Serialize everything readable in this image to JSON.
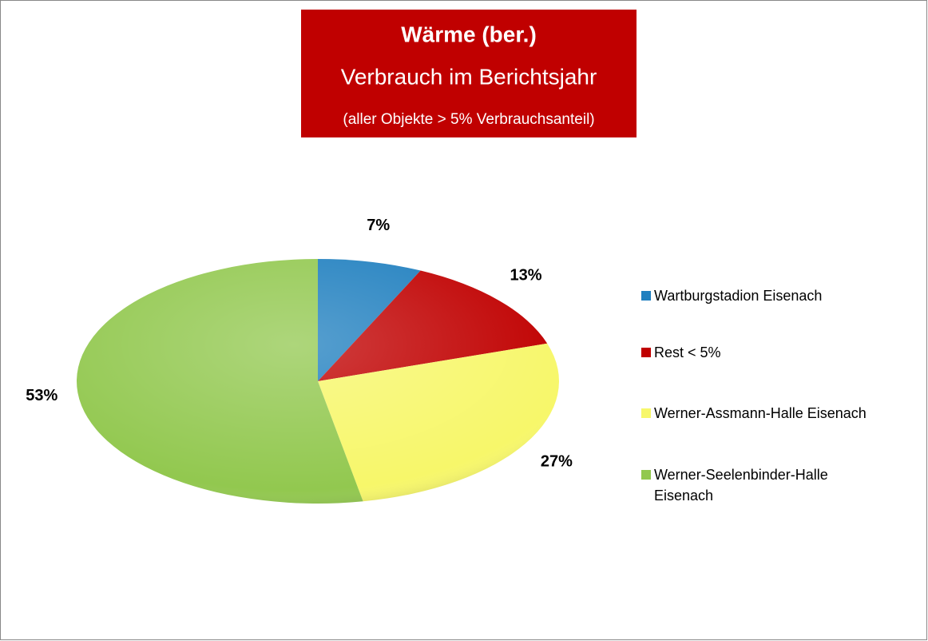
{
  "chart_data": {
    "type": "pie",
    "title": "Wärme (ber.)",
    "subtitle": "Verbrauch im Berichtsjahr",
    "note": "(aller Objekte > 5% Verbrauchsanteil)",
    "categories": [
      "Wartburgstadion Eisenach",
      "Rest < 5%",
      "Werner-Assmann-Halle Eisenach",
      "Werner-Seelenbinder-Halle Eisenach"
    ],
    "values": [
      7,
      13,
      27,
      53
    ],
    "value_labels": [
      "7%",
      "13%",
      "27%",
      "53%"
    ],
    "colors": [
      "#1f7fbf",
      "#c00000",
      "#f7f76a",
      "#92c84f"
    ],
    "legend": "right"
  }
}
